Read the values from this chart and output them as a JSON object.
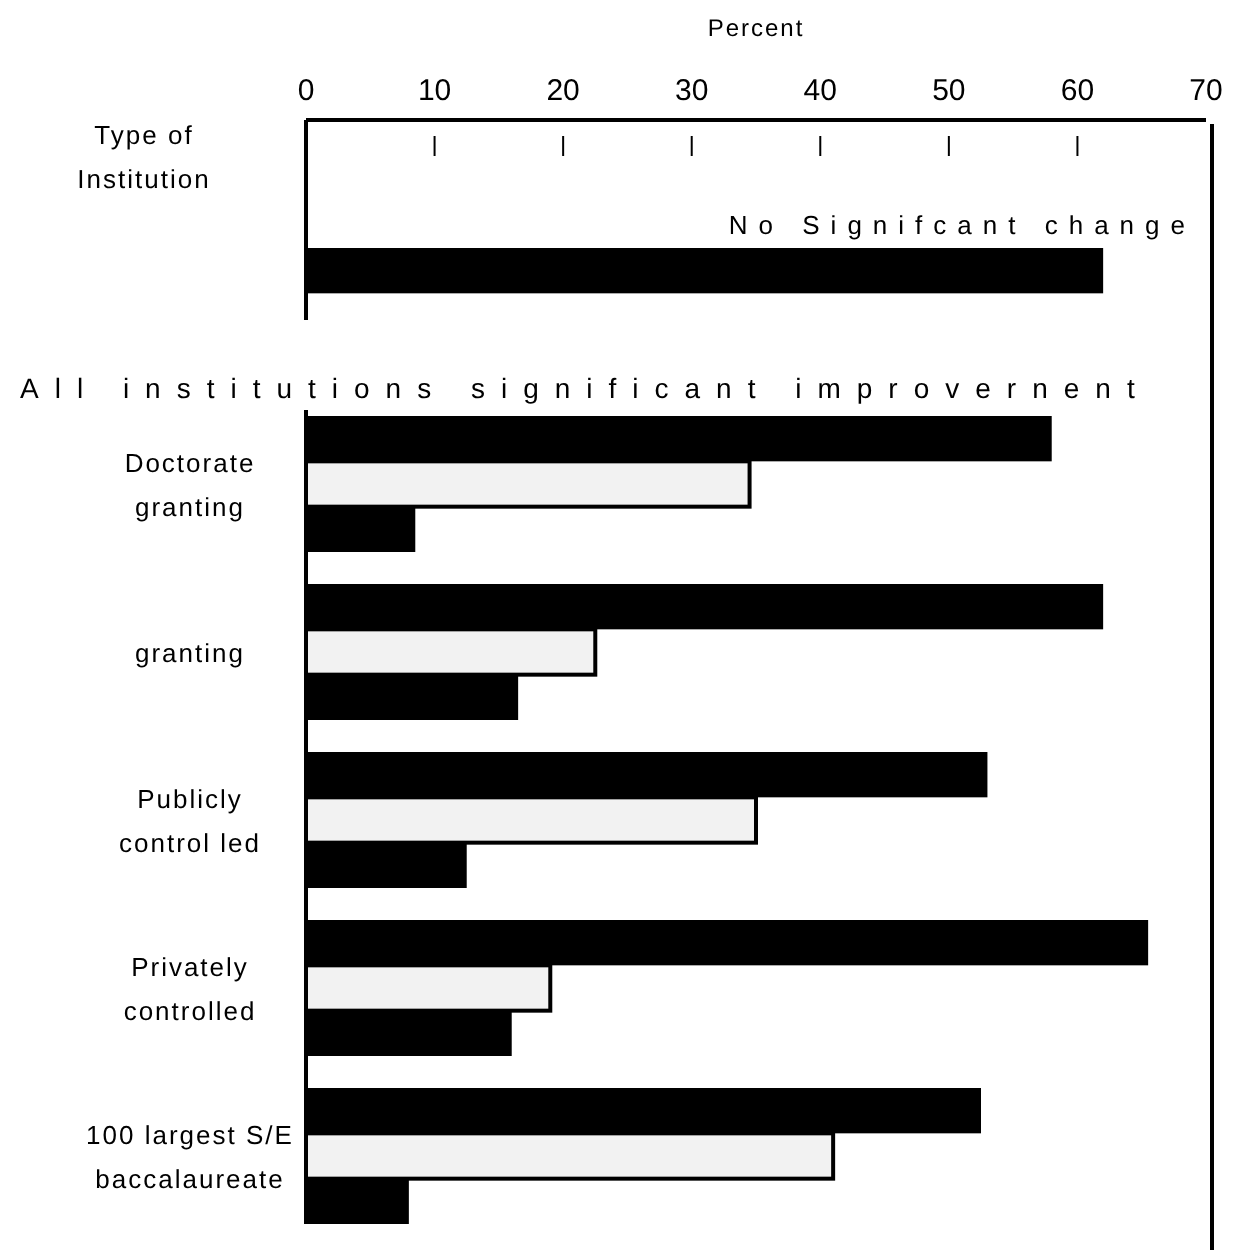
{
  "chart_data": {
    "type": "bar",
    "orientation": "horizontal",
    "xlabel": "Percent",
    "ylabel": "Type of\nInstitution",
    "categories": [
      null,
      "Doctorate\ngranting",
      "granting",
      "Publicly\ncontrol led",
      "Privately\ncontrolled",
      "100 largest S/E\nbaccalaureate"
    ],
    "series": [
      {
        "color": "#000000",
        "values": [
          62,
          58,
          62,
          53,
          65.5,
          52.5
        ]
      },
      {
        "color": "#f2f2f2",
        "values": [
          null,
          34.5,
          22.5,
          35,
          19,
          41
        ]
      },
      {
        "color": "#000000",
        "values": [
          null,
          8.5,
          16.5,
          12.5,
          16,
          8
        ]
      }
    ],
    "xlim": [
      0,
      70
    ],
    "xticks": [
      0,
      10,
      20,
      30,
      40,
      50,
      60,
      70
    ],
    "annotations": [
      "No Signifcant change",
      "All institutions significant improvernent"
    ]
  }
}
